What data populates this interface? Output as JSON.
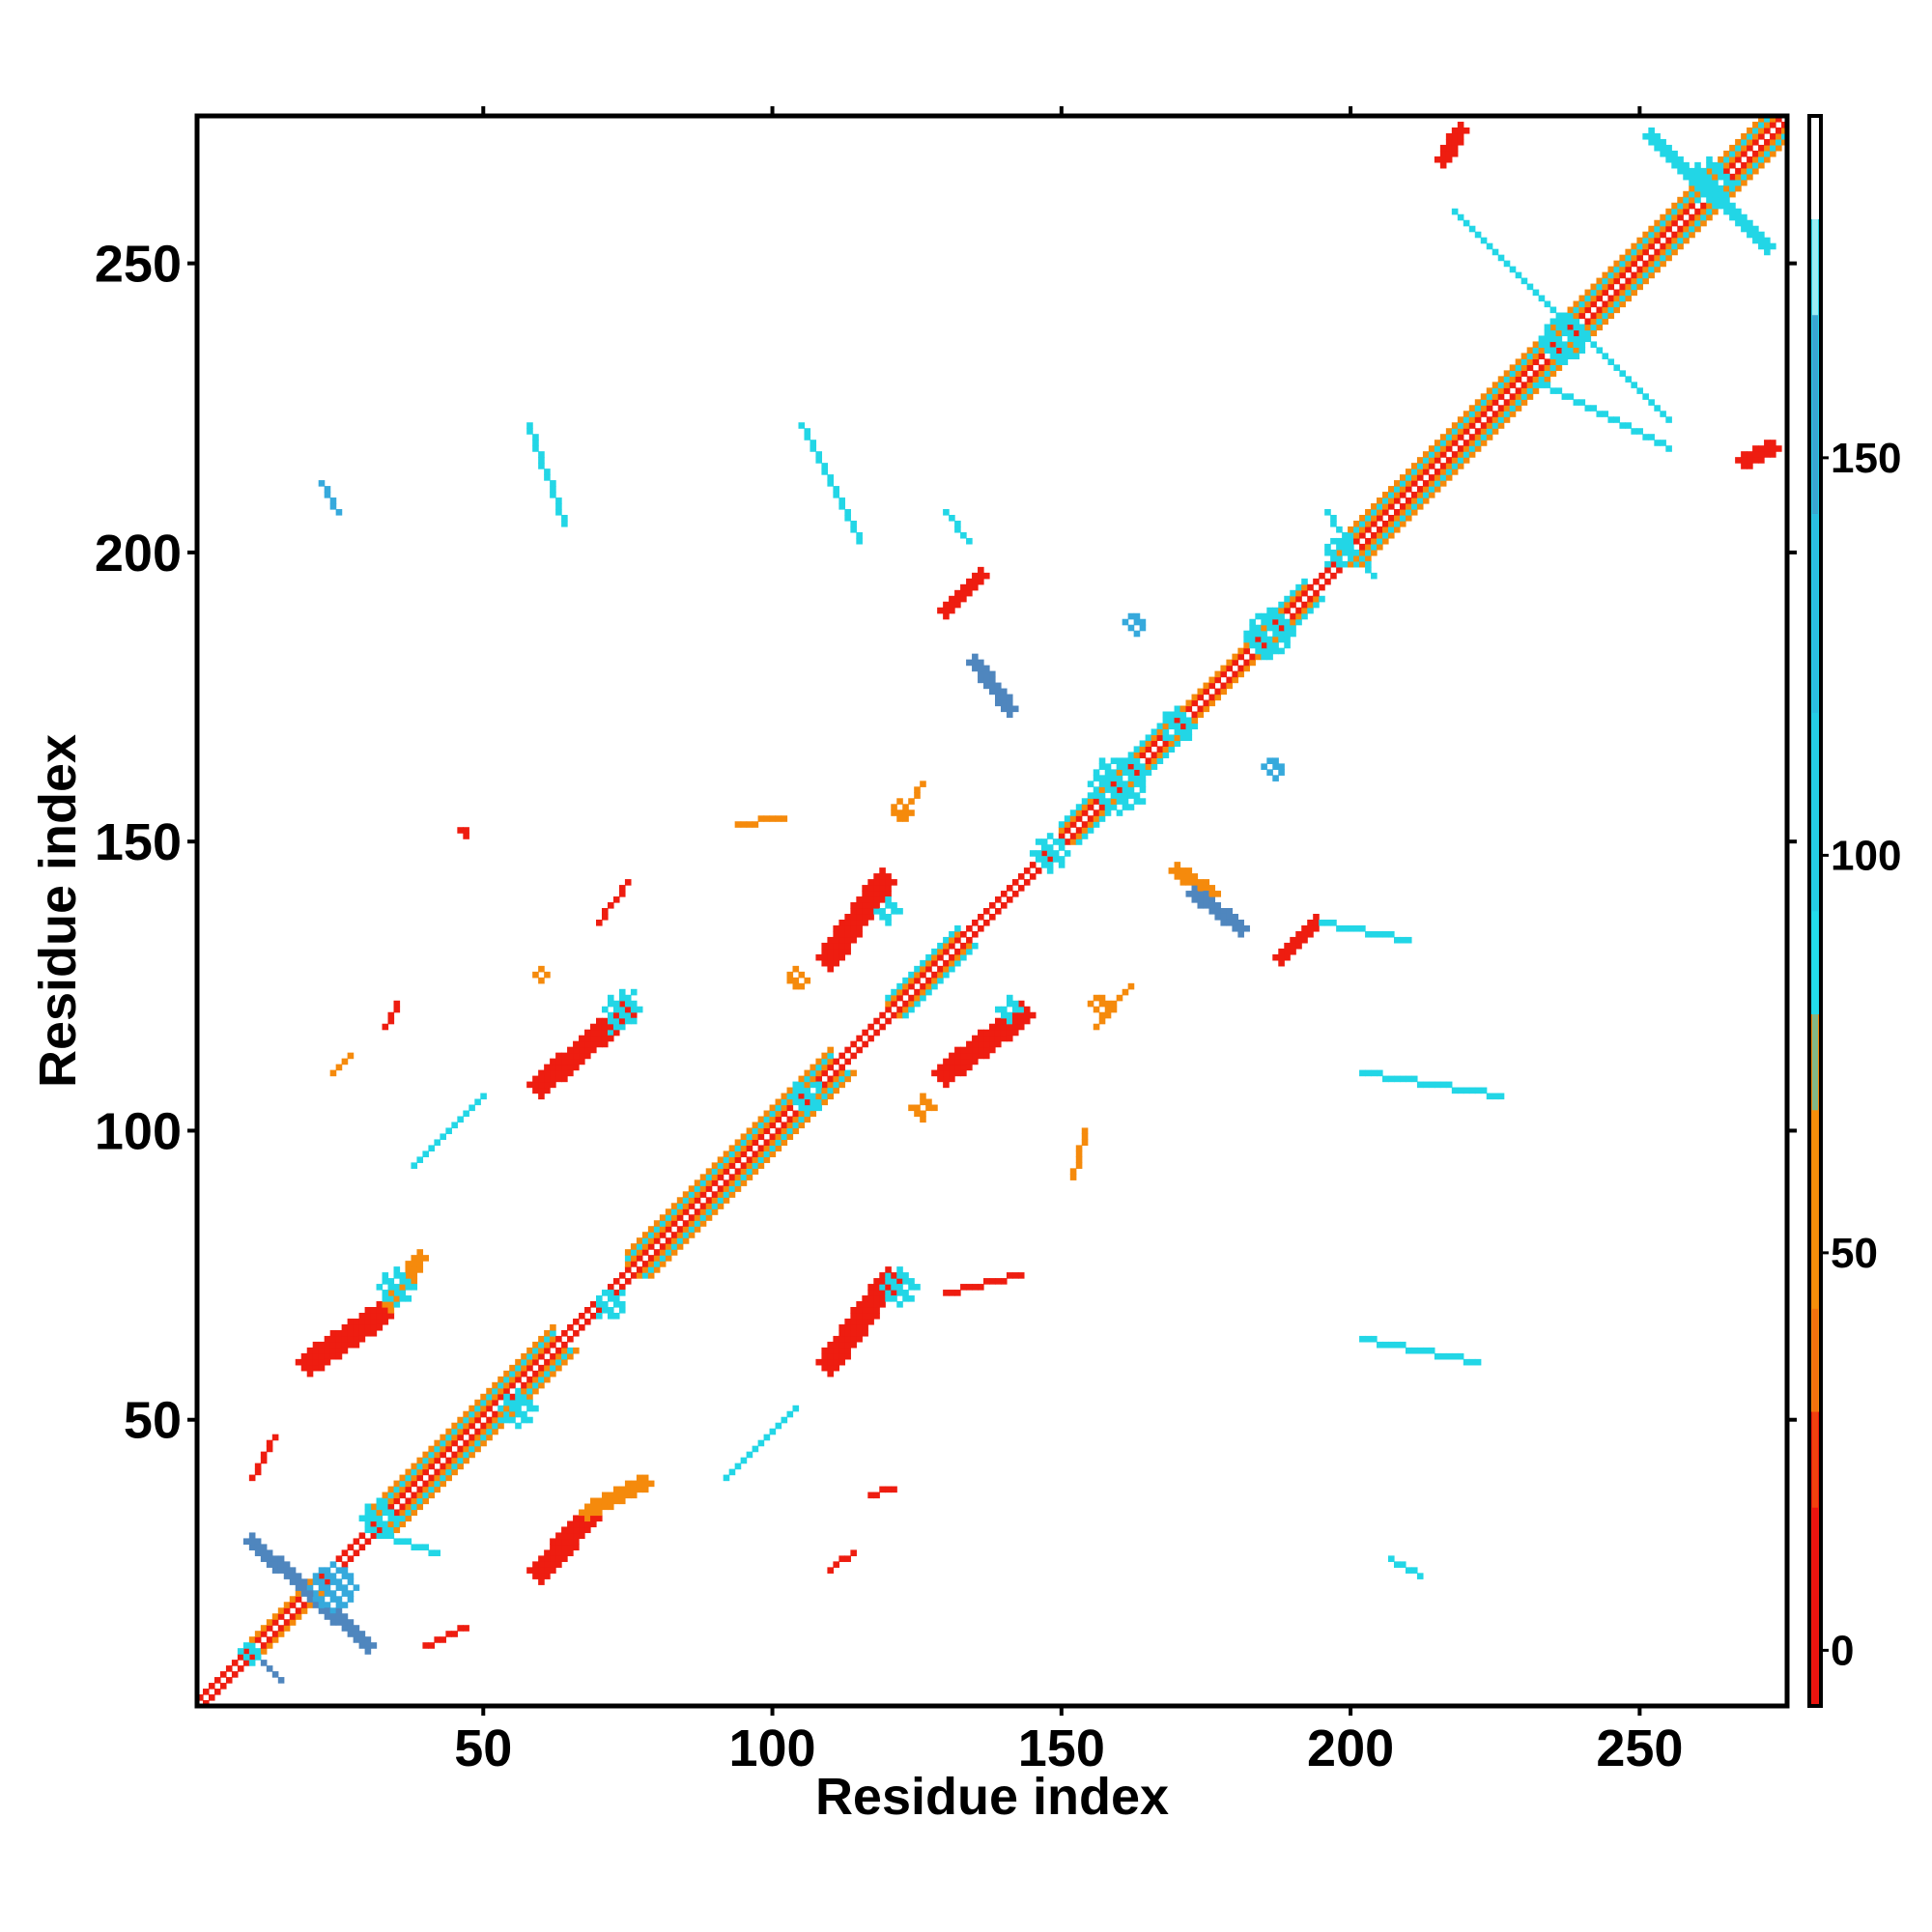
{
  "chart_data": {
    "type": "heatmap",
    "title": "",
    "xlabel": "Residue index",
    "ylabel": "Residue index",
    "xlim": [
      1,
      275
    ],
    "ylim": [
      1,
      275
    ],
    "x_ticks": [
      50,
      100,
      150,
      200,
      250
    ],
    "y_ticks": [
      50,
      100,
      150,
      200,
      250
    ],
    "colorbar": {
      "ticks": [
        0,
        50,
        100,
        150
      ],
      "range": [
        -7,
        193
      ],
      "bands": [
        {
          "from": -7,
          "to": 30,
          "color": "#ee1b0e"
        },
        {
          "from": 30,
          "to": 80,
          "color": "#f5870c"
        },
        {
          "from": 80,
          "to": 180,
          "color": "#22d8e8"
        },
        {
          "from": 180,
          "to": 193,
          "color": "#ffffff"
        }
      ],
      "gradient": [
        "#e80f10",
        "#f2600e",
        "#f5940a",
        "#22e0ec",
        "#28c4e4",
        "#35a8db",
        "#4f7fbd",
        "#ffffff"
      ]
    },
    "colors": {
      "red": "#ee1d10",
      "orange": "#f58a0c",
      "cyan": "#22d6e6",
      "steel": "#4f86be",
      "sky": "#36a9dc"
    },
    "diagonal_band_segments": [
      {
        "from": 1,
        "to": 10,
        "half_width": 1,
        "style": "thin"
      },
      {
        "from": 10,
        "to": 20,
        "half_width": 2,
        "style": "helix"
      },
      {
        "from": 20,
        "to": 30,
        "half_width": 1,
        "style": "thin"
      },
      {
        "from": 30,
        "to": 62,
        "half_width": 4,
        "style": "helix"
      },
      {
        "from": 62,
        "to": 75,
        "half_width": 1,
        "style": "thin"
      },
      {
        "from": 75,
        "to": 110,
        "half_width": 4,
        "style": "helix"
      },
      {
        "from": 110,
        "to": 120,
        "half_width": 1,
        "style": "thin"
      },
      {
        "from": 120,
        "to": 132,
        "half_width": 3,
        "style": "helix"
      },
      {
        "from": 132,
        "to": 150,
        "half_width": 1,
        "style": "thin"
      },
      {
        "from": 150,
        "to": 170,
        "half_width": 3,
        "style": "helix"
      },
      {
        "from": 170,
        "to": 182,
        "half_width": 2,
        "style": "thin"
      },
      {
        "from": 182,
        "to": 192,
        "half_width": 3,
        "style": "helix"
      },
      {
        "from": 192,
        "to": 198,
        "half_width": 1,
        "style": "thin"
      },
      {
        "from": 198,
        "to": 275,
        "half_width": 4,
        "style": "helix"
      }
    ],
    "contact_segments": [
      {
        "x1": 60,
        "y1": 24,
        "x2": 68,
        "y2": 33,
        "w": 4,
        "c": "red"
      },
      {
        "x1": 68,
        "y1": 34,
        "x2": 78,
        "y2": 39,
        "w": 2,
        "c": "orange"
      },
      {
        "x1": 20,
        "y1": 60,
        "x2": 32,
        "y2": 68,
        "w": 4,
        "c": "red"
      },
      {
        "x1": 34,
        "y1": 70,
        "x2": 39,
        "y2": 78,
        "w": 2,
        "c": "orange"
      },
      {
        "x1": 60,
        "y1": 108,
        "x2": 74,
        "y2": 120,
        "w": 4,
        "c": "red"
      },
      {
        "x1": 110,
        "y1": 60,
        "x2": 120,
        "y2": 74,
        "w": 4,
        "c": "red"
      },
      {
        "x1": 110,
        "y1": 130,
        "x2": 119,
        "y2": 143,
        "w": 4,
        "c": "red"
      },
      {
        "x1": 130,
        "y1": 110,
        "x2": 143,
        "y2": 120,
        "w": 4,
        "c": "red"
      },
      {
        "x1": 130,
        "y1": 190,
        "x2": 136,
        "y2": 196,
        "w": 3,
        "c": "red"
      },
      {
        "x1": 170,
        "y1": 145,
        "x2": 176,
        "y2": 141,
        "w": 3,
        "c": "orange"
      },
      {
        "x1": 188,
        "y1": 130,
        "x2": 194,
        "y2": 136,
        "w": 3,
        "c": "red"
      },
      {
        "x1": 216,
        "y1": 268,
        "x2": 219,
        "y2": 273,
        "w": 2,
        "c": "red"
      },
      {
        "x1": 268,
        "y1": 216,
        "x2": 273,
        "y2": 218,
        "w": 2,
        "c": "red"
      },
      {
        "x1": 33,
        "y1": 118,
        "x2": 35,
        "y2": 122,
        "w": 1,
        "c": "red"
      },
      {
        "x1": 24,
        "y1": 110,
        "x2": 27,
        "y2": 113,
        "w": 1,
        "c": "orange"
      },
      {
        "x1": 10,
        "y1": 40,
        "x2": 14,
        "y2": 47,
        "w": 1,
        "c": "red"
      },
      {
        "x1": 40,
        "y1": 11,
        "x2": 47,
        "y2": 14,
        "w": 1,
        "c": "red"
      },
      {
        "x1": 70,
        "y1": 136,
        "x2": 75,
        "y2": 143,
        "w": 1,
        "c": "red"
      },
      {
        "x1": 130,
        "y1": 72,
        "x2": 143,
        "y2": 75,
        "w": 1,
        "c": "red"
      },
      {
        "x1": 110,
        "y1": 24,
        "x2": 114,
        "y2": 27,
        "w": 1,
        "c": "red"
      },
      {
        "x1": 117,
        "y1": 37,
        "x2": 121,
        "y2": 38,
        "w": 1,
        "c": "red"
      },
      {
        "x1": 94,
        "y1": 153,
        "x2": 102,
        "y2": 154,
        "w": 1,
        "c": "orange"
      },
      {
        "x1": 10,
        "y1": 10,
        "x2": 15,
        "y2": 5,
        "w": 1,
        "c": "steel"
      },
      {
        "x1": 10,
        "y1": 29,
        "x2": 30,
        "y2": 11,
        "w": 2,
        "c": "steel"
      },
      {
        "x1": 135,
        "y1": 181,
        "x2": 141,
        "y2": 173,
        "w": 2,
        "c": "steel"
      },
      {
        "x1": 173,
        "y1": 141,
        "x2": 181,
        "y2": 135,
        "w": 2,
        "c": "steel"
      },
      {
        "x1": 252,
        "y1": 272,
        "x2": 272,
        "y2": 253,
        "w": 2,
        "c": "cyan"
      },
      {
        "x1": 218,
        "y1": 259,
        "x2": 255,
        "y2": 223,
        "w": 1,
        "c": "cyan"
      },
      {
        "x1": 233,
        "y1": 229,
        "x2": 255,
        "y2": 218,
        "w": 1,
        "c": "cyan"
      },
      {
        "x1": 105,
        "y1": 222,
        "x2": 115,
        "y2": 202,
        "w": 1,
        "c": "cyan"
      },
      {
        "x1": 58,
        "y1": 222,
        "x2": 64,
        "y2": 205,
        "w": 1,
        "c": "cyan"
      },
      {
        "x1": 130,
        "y1": 207,
        "x2": 134,
        "y2": 202,
        "w": 1,
        "c": "cyan"
      },
      {
        "x1": 196,
        "y1": 207,
        "x2": 204,
        "y2": 196,
        "w": 1,
        "c": "cyan"
      },
      {
        "x1": 202,
        "y1": 110,
        "x2": 226,
        "y2": 106,
        "w": 1,
        "c": "cyan"
      },
      {
        "x1": 202,
        "y1": 64,
        "x2": 222,
        "y2": 60,
        "w": 1,
        "c": "cyan"
      },
      {
        "x1": 38,
        "y1": 94,
        "x2": 50,
        "y2": 106,
        "w": 1,
        "c": "cyan"
      },
      {
        "x1": 92,
        "y1": 40,
        "x2": 104,
        "y2": 52,
        "w": 1,
        "c": "cyan"
      },
      {
        "x1": 30,
        "y1": 31,
        "x2": 42,
        "y2": 27,
        "w": 1,
        "c": "cyan"
      },
      {
        "x1": 207,
        "y1": 26,
        "x2": 212,
        "y2": 23,
        "w": 1,
        "c": "cyan"
      },
      {
        "x1": 195,
        "y1": 136,
        "x2": 210,
        "y2": 133,
        "w": 1,
        "c": "cyan"
      },
      {
        "x1": 22,
        "y1": 212,
        "x2": 25,
        "y2": 207,
        "w": 1,
        "c": "sky"
      },
      {
        "x1": 72,
        "y1": 117,
        "x2": 76,
        "y2": 124,
        "w": 1,
        "c": "cyan"
      },
      {
        "x1": 122,
        "y1": 154,
        "x2": 126,
        "y2": 160,
        "w": 1,
        "c": "orange"
      },
      {
        "x1": 152,
        "y1": 92,
        "x2": 154,
        "y2": 100,
        "w": 1,
        "c": "orange"
      },
      {
        "x1": 156,
        "y1": 118,
        "x2": 162,
        "y2": 125,
        "w": 1,
        "c": "orange"
      }
    ],
    "contact_blobs": [
      {
        "x": 35,
        "y": 73,
        "r": 3,
        "c": "cyan"
      },
      {
        "x": 74,
        "y": 121,
        "r": 3,
        "c": "cyan"
      },
      {
        "x": 122,
        "y": 73,
        "r": 3,
        "c": "cyan"
      },
      {
        "x": 120,
        "y": 138,
        "r": 2,
        "c": "cyan"
      },
      {
        "x": 141,
        "y": 121,
        "r": 2,
        "c": "cyan"
      },
      {
        "x": 24,
        "y": 21,
        "r": 4,
        "c": "sky"
      },
      {
        "x": 10,
        "y": 10,
        "r": 2,
        "c": "cyan"
      },
      {
        "x": 32,
        "y": 33,
        "r": 3,
        "c": "cyan"
      },
      {
        "x": 56,
        "y": 52,
        "r": 3,
        "c": "cyan"
      },
      {
        "x": 72,
        "y": 70,
        "r": 3,
        "c": "cyan"
      },
      {
        "x": 106,
        "y": 106,
        "r": 3,
        "c": "cyan"
      },
      {
        "x": 148,
        "y": 148,
        "r": 3,
        "c": "cyan"
      },
      {
        "x": 160,
        "y": 160,
        "r": 5,
        "c": "cyan"
      },
      {
        "x": 170,
        "y": 170,
        "r": 3,
        "c": "cyan"
      },
      {
        "x": 186,
        "y": 186,
        "r": 4,
        "c": "cyan"
      },
      {
        "x": 198,
        "y": 200,
        "r": 3,
        "c": "cyan"
      },
      {
        "x": 237,
        "y": 237,
        "r": 4,
        "c": "cyan"
      },
      {
        "x": 262,
        "y": 264,
        "r": 4,
        "c": "cyan"
      },
      {
        "x": 163,
        "y": 188,
        "r": 2,
        "c": "sky"
      },
      {
        "x": 187,
        "y": 163,
        "r": 2,
        "c": "sky"
      },
      {
        "x": 122,
        "y": 155,
        "r": 2,
        "c": "orange"
      },
      {
        "x": 104,
        "y": 126,
        "r": 2,
        "c": "orange"
      },
      {
        "x": 126,
        "y": 104,
        "r": 2,
        "c": "orange"
      },
      {
        "x": 157,
        "y": 122,
        "r": 2,
        "c": "orange"
      },
      {
        "x": 60,
        "y": 127,
        "r": 1,
        "c": "orange"
      },
      {
        "x": 47,
        "y": 152,
        "r": 1,
        "c": "red"
      }
    ]
  }
}
